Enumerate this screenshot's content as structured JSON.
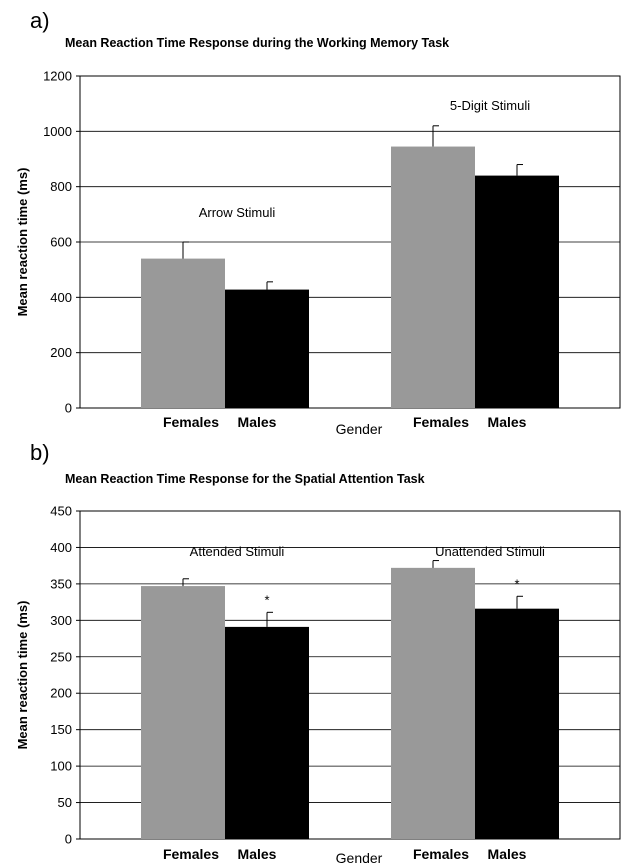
{
  "chart_data": [
    {
      "panel": "a)",
      "type": "bar",
      "title": "Mean Reaction Time Response during the Working Memory Task",
      "ylabel": "Mean reaction time (ms)",
      "xlabel": "Gender",
      "ylim": [
        0,
        1200
      ],
      "yticks": [
        0,
        200,
        400,
        600,
        800,
        1000,
        1200
      ],
      "grid": true,
      "groups": [
        {
          "name": "Arrow Stimuli",
          "bars": [
            {
              "category": "Females",
              "value": 540,
              "error": 60,
              "color": "#999999",
              "marker": ""
            },
            {
              "category": "Males",
              "value": 428,
              "error": 28,
              "color": "#000000",
              "marker": ""
            }
          ]
        },
        {
          "name": "5-Digit Stimuli",
          "bars": [
            {
              "category": "Females",
              "value": 945,
              "error": 75,
              "color": "#999999",
              "marker": ""
            },
            {
              "category": "Males",
              "value": 840,
              "error": 40,
              "color": "#000000",
              "marker": ""
            }
          ]
        }
      ]
    },
    {
      "panel": "b)",
      "type": "bar",
      "title": "Mean Reaction Time Response for the Spatial Attention Task",
      "ylabel": "Mean reaction time (ms)",
      "xlabel": "Gender",
      "ylim": [
        0,
        450
      ],
      "yticks": [
        0,
        50,
        100,
        150,
        200,
        250,
        300,
        350,
        400,
        450
      ],
      "grid": true,
      "groups": [
        {
          "name": "Attended Stimuli",
          "bars": [
            {
              "category": "Females",
              "value": 347,
              "error": 10,
              "color": "#999999",
              "marker": ""
            },
            {
              "category": "Males",
              "value": 291,
              "error": 20,
              "color": "#000000",
              "marker": "*"
            }
          ]
        },
        {
          "name": "Unattended Stimuli",
          "bars": [
            {
              "category": "Females",
              "value": 372,
              "error": 10,
              "color": "#999999",
              "marker": ""
            },
            {
              "category": "Males",
              "value": 316,
              "error": 17,
              "color": "#000000",
              "marker": "*"
            }
          ]
        }
      ]
    }
  ]
}
